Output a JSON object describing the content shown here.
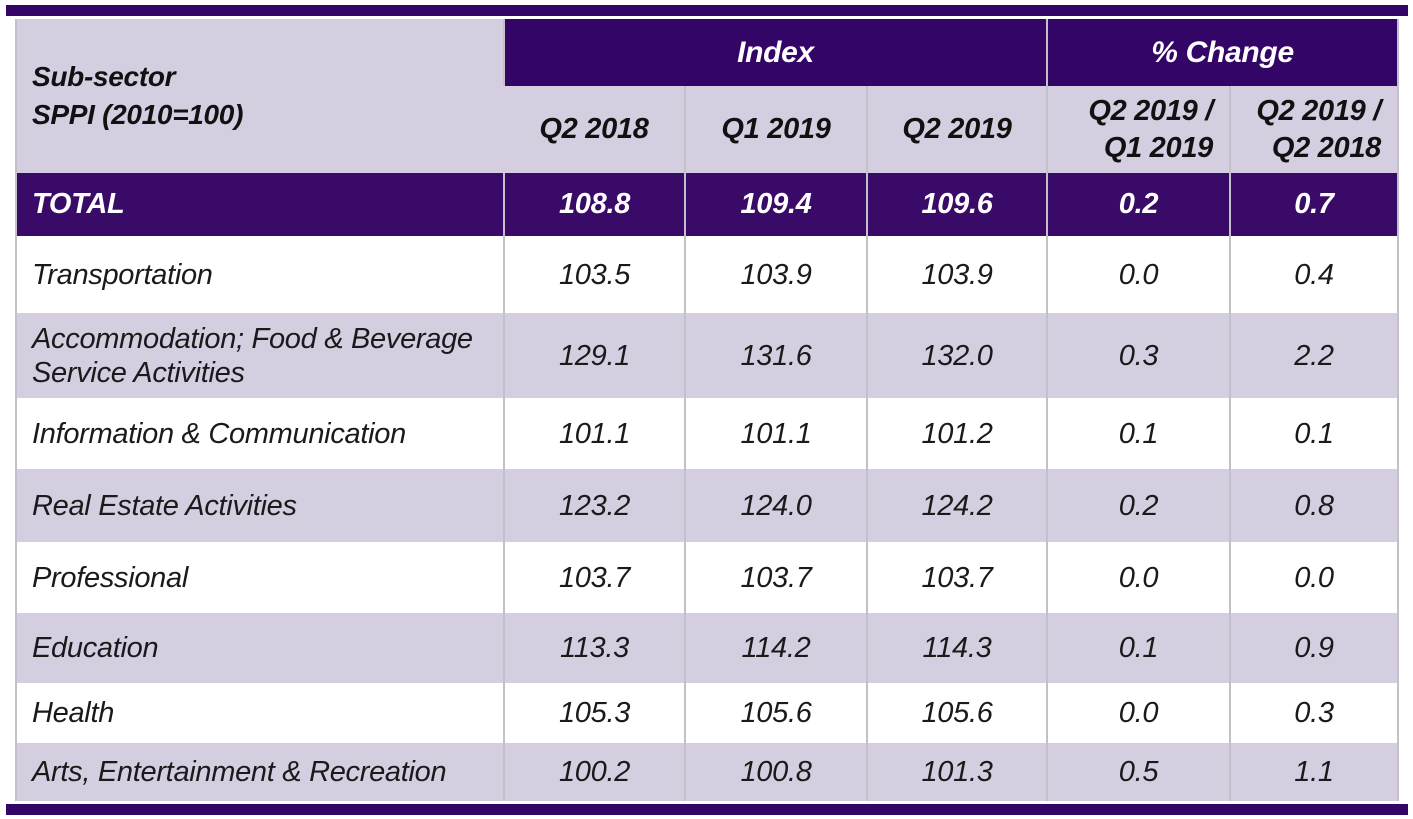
{
  "table": {
    "corner_header": {
      "line1": "Sub-sector",
      "line2": "SPPI (2010=100)"
    },
    "group_headers": {
      "index": "Index",
      "pct_change": "% Change"
    },
    "quarter_headers": [
      "Q2 2018",
      "Q1 2019",
      "Q2 2019"
    ],
    "pct_headers": [
      {
        "line1": "Q2 2019 /",
        "line2": "Q1 2019"
      },
      {
        "line1": "Q2 2019 /",
        "line2": "Q2 2018"
      }
    ],
    "total_row": {
      "label": "TOTAL",
      "values": [
        "108.8",
        "109.4",
        "109.6",
        "0.2",
        "0.7"
      ]
    },
    "rows": [
      {
        "label": "Transportation",
        "values": [
          "103.5",
          "103.9",
          "103.9",
          "0.0",
          "0.4"
        ]
      },
      {
        "label": "Accommodation; Food & Beverage Service Activities",
        "values": [
          "129.1",
          "131.6",
          "132.0",
          "0.3",
          "2.2"
        ]
      },
      {
        "label": "Information & Communication",
        "values": [
          "101.1",
          "101.1",
          "101.2",
          "0.1",
          "0.1"
        ]
      },
      {
        "label": "Real Estate Activities",
        "values": [
          "123.2",
          "124.0",
          "124.2",
          "0.2",
          "0.8"
        ]
      },
      {
        "label": "Professional",
        "values": [
          "103.7",
          "103.7",
          "103.7",
          "0.0",
          "0.0"
        ]
      },
      {
        "label": "Education",
        "values": [
          "113.3",
          "114.2",
          "114.3",
          "0.1",
          "0.9"
        ]
      },
      {
        "label": "Health",
        "values": [
          "105.3",
          "105.6",
          "105.6",
          "0.0",
          "0.3"
        ]
      },
      {
        "label": "Arts, Entertainment & Recreation",
        "values": [
          "100.2",
          "100.8",
          "101.3",
          "0.5",
          "1.1"
        ]
      }
    ],
    "colors": {
      "header_purple": "#330566",
      "total_purple": "#3A0A68",
      "lavender": "#D4CEE0",
      "grid_gray": "#C2C0C9",
      "text_dark": "#1A1A1A",
      "text_light": "#FFFFFF"
    }
  },
  "chart_data": {
    "type": "table",
    "title": "Sub-sector SPPI (2010=100)",
    "column_groups": [
      "Index",
      "% Change"
    ],
    "columns": [
      "Sub-sector SPPI (2010=100)",
      "Q2 2018",
      "Q1 2019",
      "Q2 2019",
      "Q2 2019 / Q1 2019",
      "Q2 2019 / Q2 2018"
    ],
    "rows": [
      [
        "TOTAL",
        108.8,
        109.4,
        109.6,
        0.2,
        0.7
      ],
      [
        "Transportation",
        103.5,
        103.9,
        103.9,
        0.0,
        0.4
      ],
      [
        "Accommodation; Food & Beverage Service Activities",
        129.1,
        131.6,
        132.0,
        0.3,
        2.2
      ],
      [
        "Information & Communication",
        101.1,
        101.1,
        101.2,
        0.1,
        0.1
      ],
      [
        "Real Estate Activities",
        123.2,
        124.0,
        124.2,
        0.2,
        0.8
      ],
      [
        "Professional",
        103.7,
        103.7,
        103.7,
        0.0,
        0.0
      ],
      [
        "Education",
        113.3,
        114.2,
        114.3,
        0.1,
        0.9
      ],
      [
        "Health",
        105.3,
        105.6,
        105.6,
        0.0,
        0.3
      ],
      [
        "Arts, Entertainment & Recreation",
        100.2,
        100.8,
        101.3,
        0.5,
        1.1
      ]
    ]
  }
}
